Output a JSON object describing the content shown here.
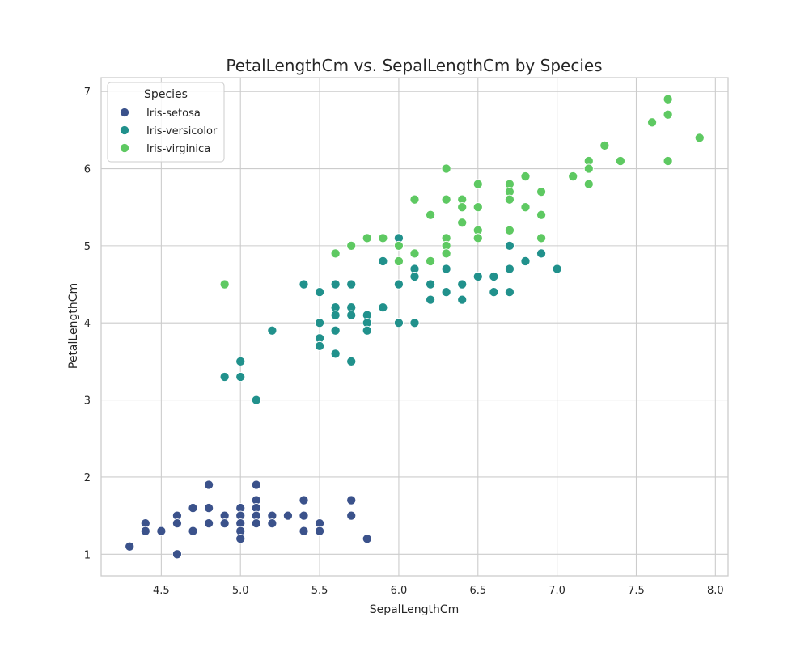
{
  "chart_data": {
    "type": "scatter",
    "title": "PetalLengthCm vs. SepalLengthCm by Species",
    "xlabel": "SepalLengthCm",
    "ylabel": "PetalLengthCm",
    "xlim": [
      4.12,
      8.08
    ],
    "ylim": [
      0.72,
      7.18
    ],
    "x_ticks": [
      4.5,
      5.0,
      5.5,
      6.0,
      6.5,
      7.0,
      7.5,
      8.0
    ],
    "x_tick_labels": [
      "4.5",
      "5.0",
      "5.5",
      "6.0",
      "6.5",
      "7.0",
      "7.5",
      "8.0"
    ],
    "y_ticks": [
      1,
      2,
      3,
      4,
      5,
      6,
      7
    ],
    "y_tick_labels": [
      "1",
      "2",
      "3",
      "4",
      "5",
      "6",
      "7"
    ],
    "grid": true,
    "legend": {
      "title": "Species",
      "placement": "top-left"
    },
    "series": [
      {
        "name": "Iris-setosa",
        "color": "#3b528b",
        "points": [
          [
            4.3,
            1.1
          ],
          [
            4.4,
            1.4
          ],
          [
            4.4,
            1.3
          ],
          [
            4.5,
            1.3
          ],
          [
            4.6,
            1.5
          ],
          [
            4.6,
            1.4
          ],
          [
            4.6,
            1.0
          ],
          [
            4.7,
            1.6
          ],
          [
            4.7,
            1.3
          ],
          [
            4.8,
            1.9
          ],
          [
            4.8,
            1.6
          ],
          [
            4.8,
            1.4
          ],
          [
            4.9,
            1.5
          ],
          [
            4.9,
            1.4
          ],
          [
            5.0,
            1.6
          ],
          [
            5.0,
            1.5
          ],
          [
            5.0,
            1.4
          ],
          [
            5.0,
            1.3
          ],
          [
            5.0,
            1.2
          ],
          [
            5.1,
            1.9
          ],
          [
            5.1,
            1.7
          ],
          [
            5.1,
            1.6
          ],
          [
            5.1,
            1.5
          ],
          [
            5.1,
            1.4
          ],
          [
            5.2,
            1.5
          ],
          [
            5.2,
            1.4
          ],
          [
            5.3,
            1.5
          ],
          [
            5.4,
            1.7
          ],
          [
            5.4,
            1.5
          ],
          [
            5.4,
            1.3
          ],
          [
            5.5,
            1.4
          ],
          [
            5.5,
            1.3
          ],
          [
            5.7,
            1.7
          ],
          [
            5.7,
            1.5
          ],
          [
            5.8,
            1.2
          ]
        ]
      },
      {
        "name": "Iris-versicolor",
        "color": "#21918c",
        "points": [
          [
            4.9,
            3.3
          ],
          [
            5.0,
            3.5
          ],
          [
            5.0,
            3.3
          ],
          [
            5.1,
            3.0
          ],
          [
            5.2,
            3.9
          ],
          [
            5.4,
            4.5
          ],
          [
            5.5,
            4.4
          ],
          [
            5.5,
            4.0
          ],
          [
            5.5,
            3.8
          ],
          [
            5.5,
            3.7
          ],
          [
            5.6,
            4.5
          ],
          [
            5.6,
            4.2
          ],
          [
            5.6,
            4.1
          ],
          [
            5.6,
            3.9
          ],
          [
            5.6,
            3.6
          ],
          [
            5.7,
            4.5
          ],
          [
            5.7,
            4.2
          ],
          [
            5.7,
            4.1
          ],
          [
            5.7,
            3.5
          ],
          [
            5.8,
            4.1
          ],
          [
            5.8,
            4.0
          ],
          [
            5.8,
            3.9
          ],
          [
            5.9,
            4.8
          ],
          [
            5.9,
            4.2
          ],
          [
            6.0,
            5.1
          ],
          [
            6.0,
            4.5
          ],
          [
            6.0,
            4.0
          ],
          [
            6.1,
            4.7
          ],
          [
            6.1,
            4.6
          ],
          [
            6.1,
            4.0
          ],
          [
            6.2,
            4.5
          ],
          [
            6.2,
            4.3
          ],
          [
            6.3,
            4.9
          ],
          [
            6.3,
            4.7
          ],
          [
            6.3,
            4.4
          ],
          [
            6.4,
            4.5
          ],
          [
            6.4,
            4.3
          ],
          [
            6.5,
            4.6
          ],
          [
            6.6,
            4.6
          ],
          [
            6.6,
            4.4
          ],
          [
            6.7,
            5.0
          ],
          [
            6.7,
            4.7
          ],
          [
            6.7,
            4.4
          ],
          [
            6.8,
            4.8
          ],
          [
            6.9,
            4.9
          ],
          [
            7.0,
            4.7
          ]
        ]
      },
      {
        "name": "Iris-virginica",
        "color": "#5ec962",
        "points": [
          [
            4.9,
            4.5
          ],
          [
            5.6,
            4.9
          ],
          [
            5.7,
            5.0
          ],
          [
            5.8,
            5.1
          ],
          [
            5.9,
            5.1
          ],
          [
            6.0,
            5.0
          ],
          [
            6.0,
            4.8
          ],
          [
            6.1,
            5.6
          ],
          [
            6.1,
            4.9
          ],
          [
            6.2,
            5.4
          ],
          [
            6.2,
            4.8
          ],
          [
            6.3,
            6.0
          ],
          [
            6.3,
            5.6
          ],
          [
            6.3,
            5.1
          ],
          [
            6.3,
            5.0
          ],
          [
            6.3,
            4.9
          ],
          [
            6.4,
            5.6
          ],
          [
            6.4,
            5.5
          ],
          [
            6.4,
            5.3
          ],
          [
            6.5,
            5.8
          ],
          [
            6.5,
            5.5
          ],
          [
            6.5,
            5.2
          ],
          [
            6.5,
            5.1
          ],
          [
            6.7,
            5.8
          ],
          [
            6.7,
            5.7
          ],
          [
            6.7,
            5.6
          ],
          [
            6.7,
            5.2
          ],
          [
            6.8,
            5.9
          ],
          [
            6.8,
            5.5
          ],
          [
            6.9,
            5.7
          ],
          [
            6.9,
            5.4
          ],
          [
            6.9,
            5.1
          ],
          [
            7.1,
            5.9
          ],
          [
            7.2,
            6.1
          ],
          [
            7.2,
            6.0
          ],
          [
            7.2,
            5.8
          ],
          [
            7.3,
            6.3
          ],
          [
            7.4,
            6.1
          ],
          [
            7.6,
            6.6
          ],
          [
            7.7,
            6.9
          ],
          [
            7.7,
            6.7
          ],
          [
            7.7,
            6.1
          ],
          [
            7.9,
            6.4
          ]
        ]
      }
    ]
  }
}
